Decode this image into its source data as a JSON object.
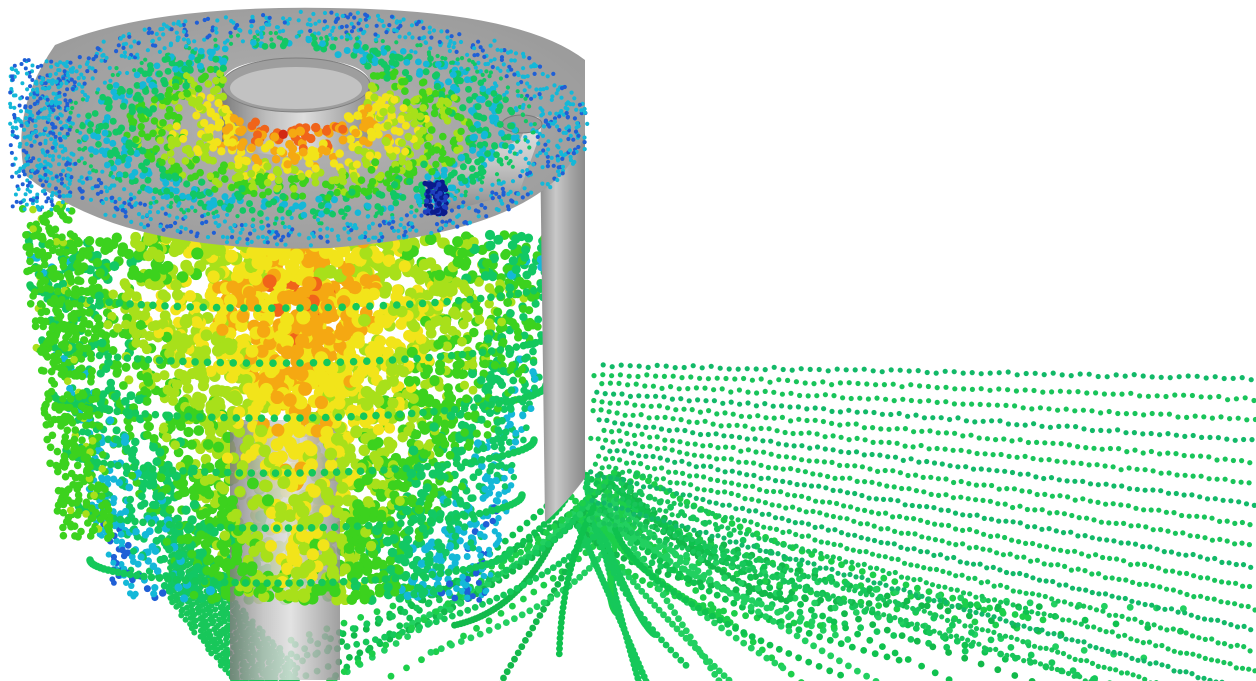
{
  "scene": {
    "background": "#ffffff",
    "wall_color": "#a8a8a8",
    "wall_highlight": "#e6e6e6",
    "particle_colormap": [
      "#0a1a8c",
      "#1f5fd6",
      "#14b8d8",
      "#12c864",
      "#3cd21e",
      "#a8e01a",
      "#f2e41a",
      "#f5a812",
      "#f0641a",
      "#d22814"
    ]
  }
}
